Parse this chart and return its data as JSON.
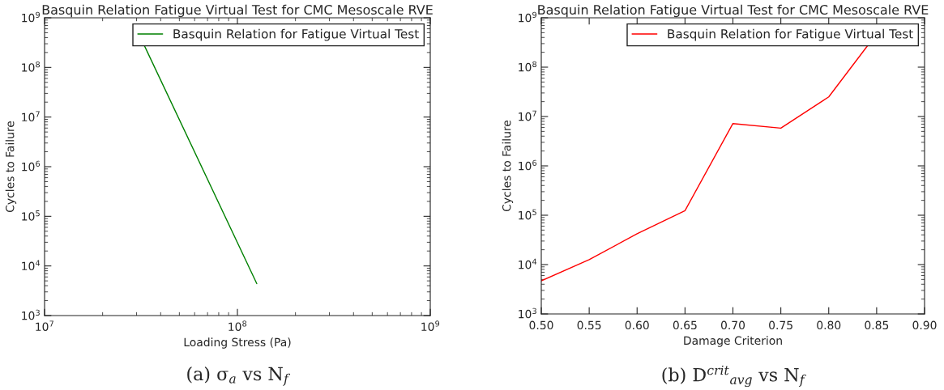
{
  "chart_data": [
    {
      "type": "line",
      "title": "Basquin Relation Fatigue Virtual Test for CMC Mesoscale RVE",
      "xlabel": "Loading Stress (Pa)",
      "ylabel": "Cycles to Failure",
      "log": "xy",
      "x": [
        33000000,
        126000000
      ],
      "series": [
        {
          "name": "Basquin Relation for Fatigue Virtual Test",
          "color": "#008000",
          "values": [
            270000000,
            4400
          ]
        }
      ],
      "xlim": [
        10000000,
        1000000000
      ],
      "xticks": [
        {
          "value": 10000000,
          "label": "10$^{7}$"
        },
        {
          "value": 100000000,
          "label": "10$^{8}$"
        },
        {
          "value": 1000000000,
          "label": "10$^{9}$"
        }
      ],
      "ylim": [
        1000,
        1000000000
      ],
      "yticks": [
        {
          "value": 1000,
          "label": "10$^{3}$"
        },
        {
          "value": 10000,
          "label": "10$^{4}$"
        },
        {
          "value": 100000,
          "label": "10$^{5}$"
        },
        {
          "value": 1000000,
          "label": "10$^{6}$"
        },
        {
          "value": 10000000,
          "label": "10$^{7}$"
        },
        {
          "value": 100000000,
          "label": "10$^{8}$"
        },
        {
          "value": 1000000000,
          "label": "10$^{9}$"
        }
      ],
      "legend": "top right",
      "grid": false,
      "annotations": [
        "(a) σ$_{a}$ vs N$_{f}$"
      ]
    },
    {
      "type": "line",
      "title": "Basquin Relation Fatigue Virtual Test for CMC Mesoscale RVE",
      "xlabel": "Damage Criterion",
      "ylabel": "Cycles to Failure",
      "log": "y",
      "x": [
        0.5,
        0.55,
        0.6,
        0.65,
        0.7,
        0.75,
        0.8,
        0.841
      ],
      "series": [
        {
          "name": "Basquin Relation for Fatigue Virtual Test",
          "color": "#ff0000",
          "values": [
            4700,
            12600,
            42000,
            124000,
            7200000,
            5800000,
            25000000,
            280000000
          ]
        }
      ],
      "xlim": [
        0.5,
        0.9
      ],
      "xticks": [
        {
          "value": 0.5,
          "label": "0.50"
        },
        {
          "value": 0.55,
          "label": "0.55"
        },
        {
          "value": 0.6,
          "label": "0.60"
        },
        {
          "value": 0.65,
          "label": "0.65"
        },
        {
          "value": 0.7,
          "label": "0.70"
        },
        {
          "value": 0.75,
          "label": "0.75"
        },
        {
          "value": 0.8,
          "label": "0.80"
        },
        {
          "value": 0.85,
          "label": "0.85"
        },
        {
          "value": 0.9,
          "label": "0.90"
        }
      ],
      "ylim": [
        1000,
        1000000000
      ],
      "yticks": [
        {
          "value": 1000,
          "label": "10$^{3}$"
        },
        {
          "value": 10000,
          "label": "10$^{4}$"
        },
        {
          "value": 100000,
          "label": "10$^{5}$"
        },
        {
          "value": 1000000,
          "label": "10$^{6}$"
        },
        {
          "value": 10000000,
          "label": "10$^{7}$"
        },
        {
          "value": 100000000,
          "label": "10$^{8}$"
        },
        {
          "value": 1000000000,
          "label": "10$^{9}$"
        }
      ],
      "legend": "top right",
      "grid": false,
      "annotations": [
        "(b) D$^{crit}$$_{avg}$ vs N$_{f}$"
      ]
    }
  ]
}
